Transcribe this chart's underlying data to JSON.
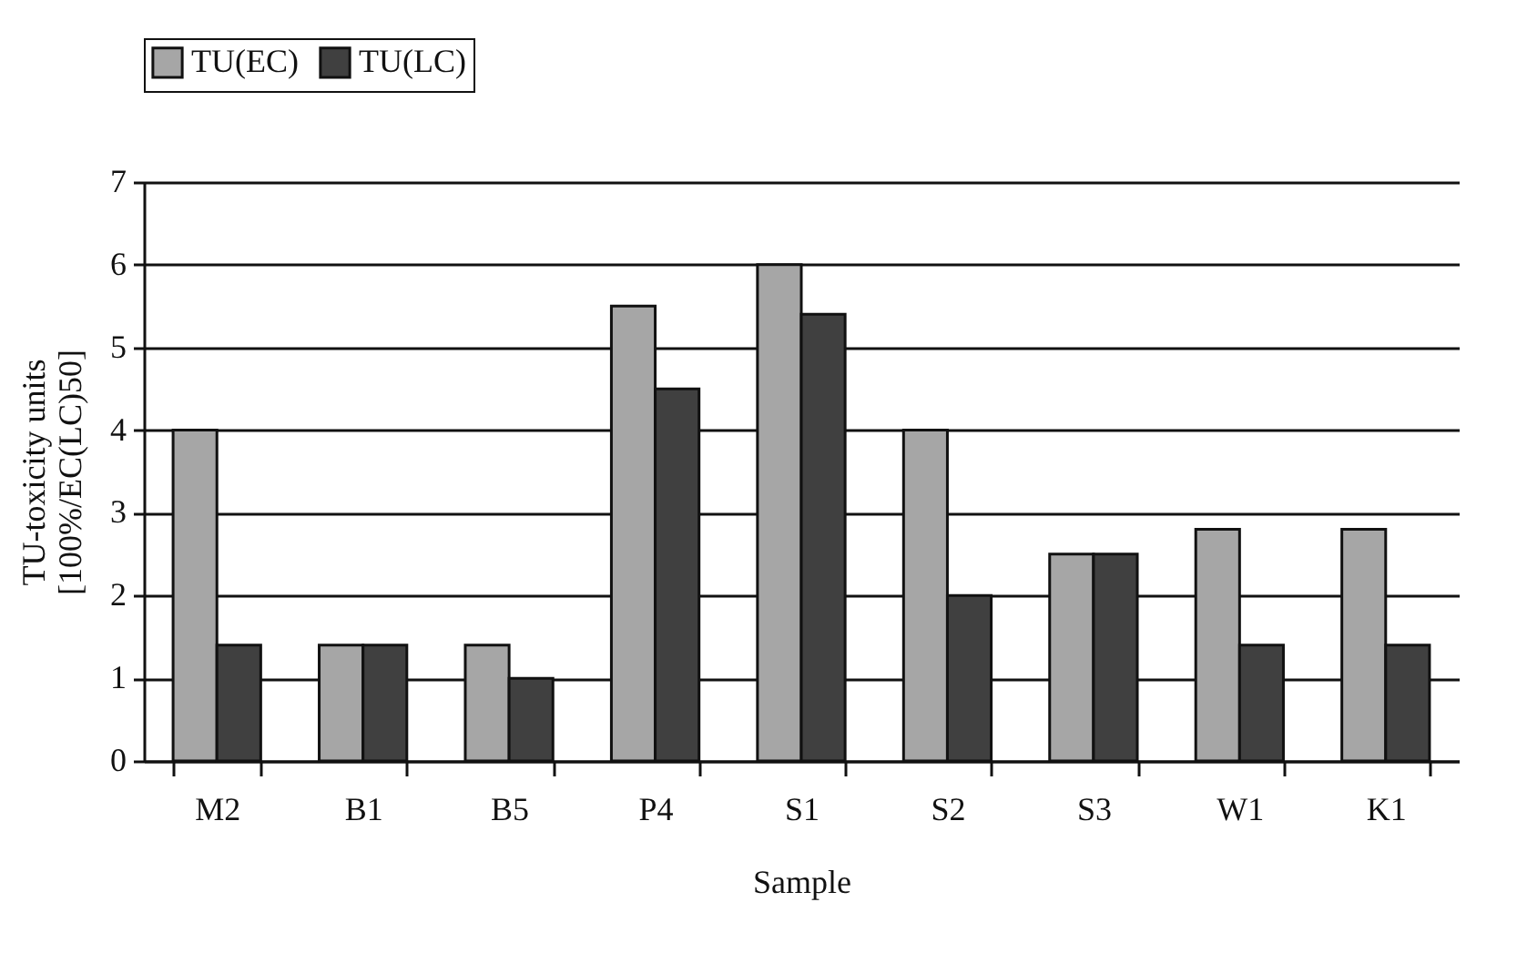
{
  "chart_data": {
    "type": "bar",
    "xlabel": "Sample",
    "ylabel": "TU-toxicity units\n[100%/EC(LC)50]",
    "categories": [
      "M2",
      "B1",
      "B5",
      "P4",
      "S1",
      "S2",
      "S3",
      "W1",
      "K1"
    ],
    "series": [
      {
        "name": "TU(EC)",
        "color": "#a6a6a6",
        "values": [
          4,
          1.4,
          1.4,
          5.5,
          6,
          4,
          2.5,
          2.8,
          2.8
        ]
      },
      {
        "name": "TU(LC)",
        "color": "#404040",
        "values": [
          1.4,
          1.4,
          1.0,
          4.5,
          5.4,
          2.0,
          2.5,
          1.4,
          1.4
        ]
      }
    ],
    "ylim": [
      0,
      7
    ],
    "yticks": [
      0,
      1,
      2,
      3,
      4,
      5,
      6,
      7
    ],
    "grid": "y",
    "legend": "top"
  }
}
